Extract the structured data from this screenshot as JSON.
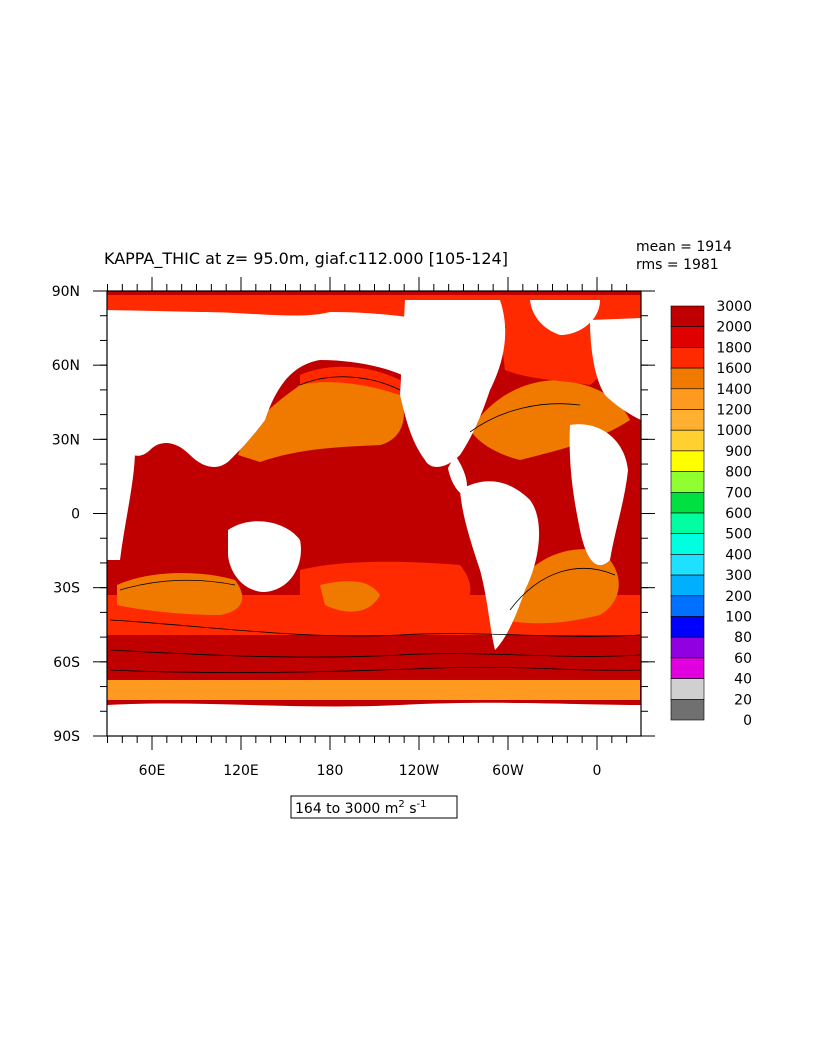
{
  "title": "KAPPA_THIC at z=  95.0m, giaf.c112.000 [105-124]",
  "stats": {
    "mean": "mean = 1914",
    "rms": "rms = 1981"
  },
  "range_box": {
    "text": "164 to 3000 m",
    "sup1": "2",
    "mid": " s",
    "sup2": "-1"
  },
  "y_ticks": [
    "90N",
    "60N",
    "30N",
    "0",
    "30S",
    "60S",
    "90S"
  ],
  "x_ticks": [
    "60E",
    "120E",
    "180",
    "120W",
    "60W",
    "0"
  ],
  "colorbar": {
    "labels": [
      "3000",
      "2000",
      "1800",
      "1600",
      "1400",
      "1200",
      "1000",
      "900",
      "800",
      "700",
      "600",
      "500",
      "400",
      "300",
      "200",
      "100",
      "80",
      "60",
      "40",
      "20",
      "0"
    ],
    "colors": [
      "#c00000",
      "#e00000",
      "#ff2a00",
      "#f07a00",
      "#ff9a20",
      "#ffb030",
      "#ffd030",
      "#ffff00",
      "#90ff30",
      "#00e040",
      "#00ffa0",
      "#00ffe0",
      "#20e0ff",
      "#00b0ff",
      "#0070ff",
      "#0000ff",
      "#9000e0",
      "#e000e0",
      "#d0d0d0",
      "#707070"
    ]
  },
  "map_colors": {
    "deep_red": "#c00000",
    "red": "#ff2a00",
    "orange": "#f07a00",
    "light_orange": "#ff9a20",
    "land": "#ffffff"
  }
}
